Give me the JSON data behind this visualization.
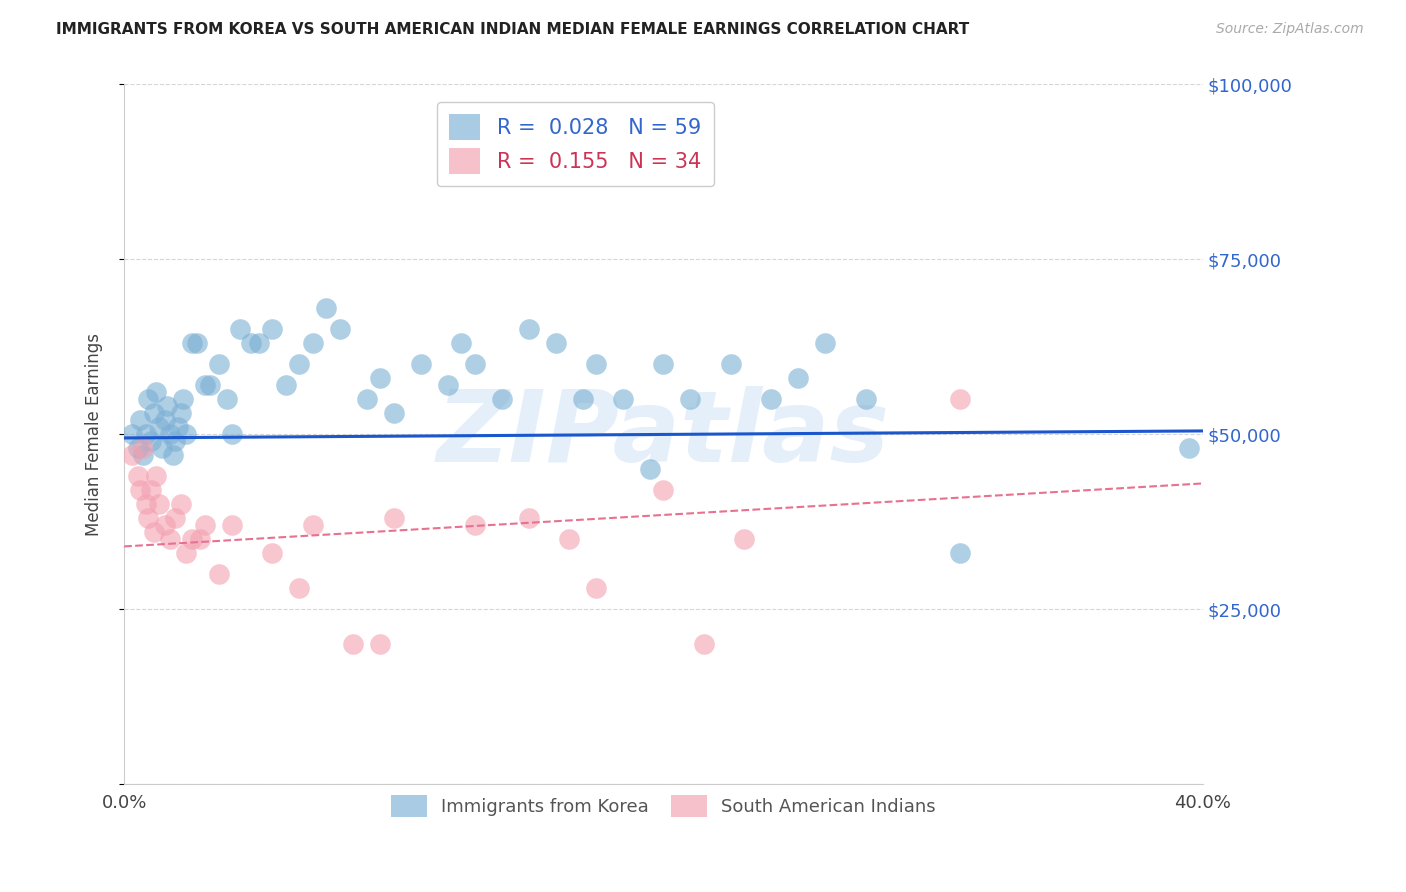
{
  "title": "IMMIGRANTS FROM KOREA VS SOUTH AMERICAN INDIAN MEDIAN FEMALE EARNINGS CORRELATION CHART",
  "source": "Source: ZipAtlas.com",
  "ylabel": "Median Female Earnings",
  "y_ticks": [
    0,
    25000,
    50000,
    75000,
    100000
  ],
  "y_tick_labels": [
    "",
    "$25,000",
    "$50,000",
    "$75,000",
    "$100,000"
  ],
  "xlim": [
    0.0,
    0.4
  ],
  "ylim": [
    0,
    100000
  ],
  "watermark": "ZIPatlas",
  "legend_blue_R": "0.028",
  "legend_blue_N": "59",
  "legend_pink_R": "0.155",
  "legend_pink_N": "34",
  "legend_blue_label": "Immigrants from Korea",
  "legend_pink_label": "South American Indians",
  "blue_color": "#7bafd4",
  "pink_color": "#f4a0b0",
  "blue_line_color": "#1a56cc",
  "pink_line_color": "#e87090",
  "blue_scatter_x": [
    0.003,
    0.005,
    0.006,
    0.007,
    0.008,
    0.009,
    0.01,
    0.011,
    0.012,
    0.013,
    0.014,
    0.015,
    0.016,
    0.017,
    0.018,
    0.019,
    0.02,
    0.021,
    0.022,
    0.023,
    0.025,
    0.027,
    0.03,
    0.032,
    0.035,
    0.038,
    0.04,
    0.043,
    0.047,
    0.05,
    0.055,
    0.06,
    0.065,
    0.07,
    0.075,
    0.08,
    0.09,
    0.095,
    0.1,
    0.11,
    0.12,
    0.125,
    0.13,
    0.14,
    0.15,
    0.16,
    0.17,
    0.175,
    0.185,
    0.195,
    0.2,
    0.21,
    0.225,
    0.24,
    0.25,
    0.26,
    0.275,
    0.31,
    0.395
  ],
  "blue_scatter_y": [
    50000,
    48000,
    52000,
    47000,
    50000,
    55000,
    49000,
    53000,
    56000,
    51000,
    48000,
    52000,
    54000,
    50000,
    47000,
    49000,
    51000,
    53000,
    55000,
    50000,
    63000,
    63000,
    57000,
    57000,
    60000,
    55000,
    50000,
    65000,
    63000,
    63000,
    65000,
    57000,
    60000,
    63000,
    68000,
    65000,
    55000,
    58000,
    53000,
    60000,
    57000,
    63000,
    60000,
    55000,
    65000,
    63000,
    55000,
    60000,
    55000,
    45000,
    60000,
    55000,
    60000,
    55000,
    58000,
    63000,
    55000,
    33000,
    48000
  ],
  "pink_scatter_x": [
    0.003,
    0.005,
    0.006,
    0.007,
    0.008,
    0.009,
    0.01,
    0.011,
    0.012,
    0.013,
    0.015,
    0.017,
    0.019,
    0.021,
    0.023,
    0.025,
    0.028,
    0.03,
    0.035,
    0.04,
    0.055,
    0.065,
    0.07,
    0.085,
    0.095,
    0.1,
    0.13,
    0.15,
    0.165,
    0.175,
    0.2,
    0.215,
    0.23,
    0.31
  ],
  "pink_scatter_y": [
    47000,
    44000,
    42000,
    48000,
    40000,
    38000,
    42000,
    36000,
    44000,
    40000,
    37000,
    35000,
    38000,
    40000,
    33000,
    35000,
    35000,
    37000,
    30000,
    37000,
    33000,
    28000,
    37000,
    20000,
    20000,
    38000,
    37000,
    38000,
    35000,
    28000,
    42000,
    20000,
    35000,
    55000
  ],
  "blue_trend_x": [
    0.0,
    0.4
  ],
  "blue_trend_y": [
    49500,
    50500
  ],
  "pink_trend_x": [
    0.0,
    0.4
  ],
  "pink_trend_y": [
    34000,
    43000
  ],
  "background_color": "#ffffff",
  "grid_color": "#cccccc",
  "title_fontsize": 11,
  "source_fontsize": 10,
  "tick_label_fontsize": 13,
  "ylabel_fontsize": 12
}
